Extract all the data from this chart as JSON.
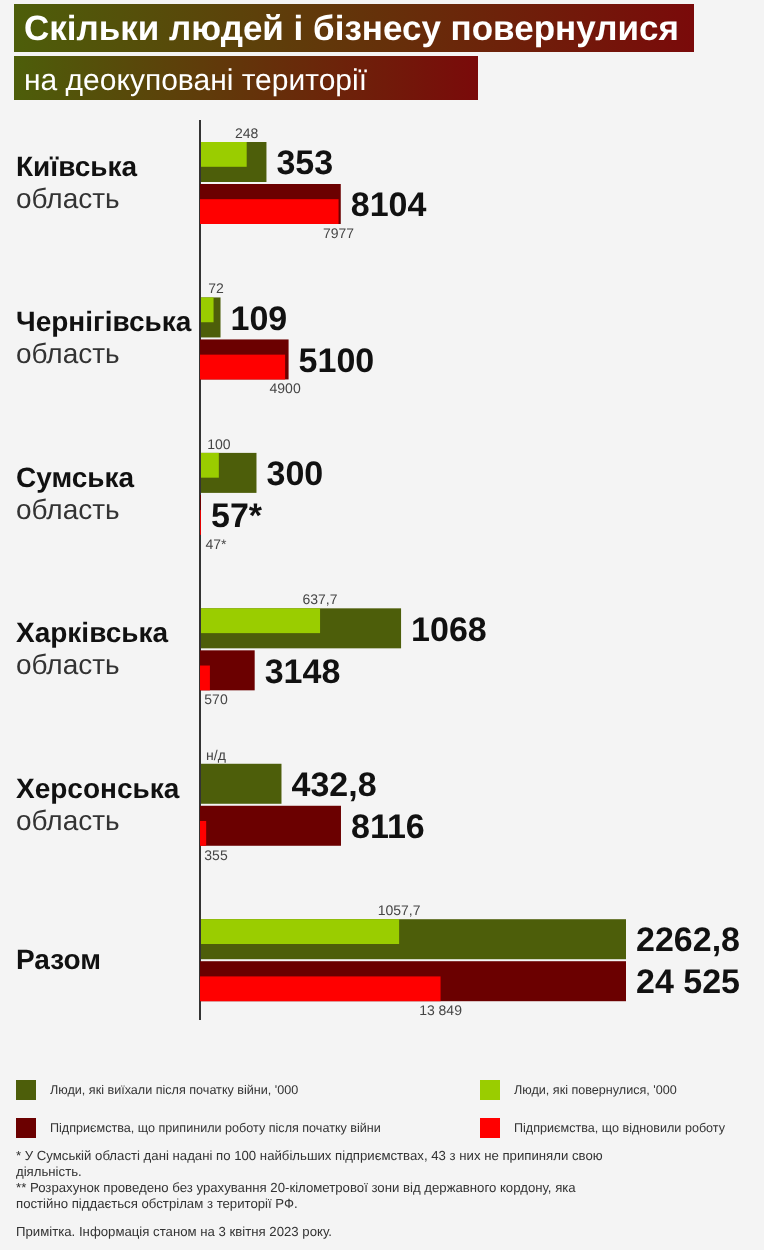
{
  "chart_data": [
    {
      "type": "bar",
      "orientation": "horizontal",
      "title": "Скільки людей і бізнесу повернулися",
      "subtitle": "на деокуповані території",
      "categories": [
        "Київська область",
        "Чернігівська область",
        "Сумська область",
        "Харківська область",
        "Херсонська область",
        "Разом"
      ],
      "xlim": [
        0,
        2262.8
      ],
      "legend": "bottom",
      "series": [
        {
          "name": "Люди, які виїхали після початку війни, '000",
          "color": "#4d5e0a",
          "values": [
            353,
            109,
            300,
            1068,
            432.8,
            2262.8
          ],
          "value_labels": [
            "353",
            "109",
            "300",
            "1068",
            "432,8",
            "2262,8"
          ]
        },
        {
          "name": "Люди, які повернулися, '000",
          "color": "#9acd00",
          "values": [
            248,
            72,
            100,
            637.7,
            null,
            1057.7
          ],
          "value_labels": [
            "248",
            "72",
            "100",
            "637,7",
            "н/д",
            "1057,7"
          ]
        }
      ]
    },
    {
      "type": "bar",
      "orientation": "horizontal",
      "categories": [
        null,
        null,
        null,
        null,
        null,
        null
      ],
      "xlim": [
        0,
        24525
      ],
      "legend": "bottom",
      "series": [
        {
          "name": "Підприємства, що припинили роботу після початку війни",
          "color": "#6b0000",
          "values": [
            8104,
            5100,
            57,
            3148,
            8116,
            24525
          ],
          "value_labels": [
            "8104",
            "5100",
            "57*",
            "3148",
            "8116",
            "24 525"
          ]
        },
        {
          "name": "Підприємства, що відновили роботу",
          "color": "#ff0000",
          "values": [
            7977,
            4900,
            47,
            570,
            355,
            13849
          ],
          "value_labels": [
            "7977",
            "4900",
            "47*",
            "570",
            "355",
            "13 849"
          ]
        }
      ],
      "annotations": [
        "* У Сумській області дані надані по 100 найбільших підприємствах, 43 з них не припиняли свою діяльність.",
        "** Розрахунок проведено без урахування 20-кілометрової зони від державного кордону, яка постійно піддається обстрілам з території РФ.",
        "Примітка. Інформація станом на 3 квітня 2023 року."
      ]
    }
  ]
}
